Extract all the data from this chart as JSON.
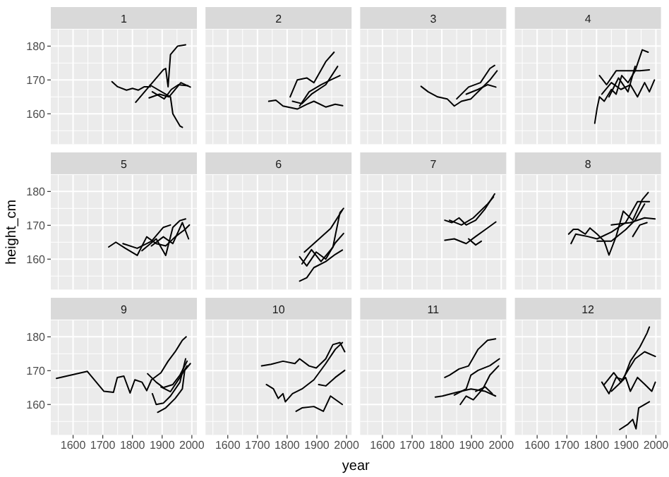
{
  "chart_data": [
    {
      "type": "line",
      "title": "1",
      "tick_labels": "y",
      "grid": true,
      "xlim": [
        1525,
        2017
      ],
      "ylim": [
        151,
        185
      ],
      "xticks": [
        1600,
        1700,
        1800,
        1900,
        2000
      ],
      "yticks": [
        160,
        170,
        180
      ],
      "series": [
        {
          "color": "#000000",
          "x": [
            1731,
            1750,
            1780,
            1800,
            1820,
            1840,
            1860
          ],
          "values": [
            169.5,
            168,
            167,
            167.5,
            167,
            168,
            168
          ]
        },
        {
          "color": "#000000",
          "x": [
            1811,
            1904,
            1912,
            1920,
            1928,
            1952,
            1979
          ],
          "values": [
            163.4,
            173,
            173.4,
            168,
            177.5,
            180,
            180.4
          ]
        },
        {
          "color": "#000000",
          "x": [
            1859,
            1928,
            1936,
            1960,
            1968
          ],
          "values": [
            168.5,
            165,
            160,
            156.4,
            156
          ]
        },
        {
          "color": "#000000",
          "x": [
            1856,
            1891,
            1923,
            1963,
            1995
          ],
          "values": [
            164.7,
            165.8,
            165,
            169.2,
            167.9
          ]
        },
        {
          "color": "#000000",
          "x": [
            1867,
            1907,
            1931,
            1955,
            1987
          ],
          "values": [
            166.5,
            164.4,
            167.2,
            168.6,
            168.3
          ]
        }
      ]
    },
    {
      "type": "line",
      "title": "2",
      "tick_labels": false,
      "grid": true,
      "xlim": [
        1525,
        2017
      ],
      "ylim": [
        151,
        185
      ],
      "xticks": [
        1600,
        1700,
        1800,
        1900,
        2000
      ],
      "yticks": [
        160,
        170,
        180
      ],
      "series": [
        {
          "color": "#000000",
          "x": [
            1738,
            1762,
            1786,
            1834,
            1866,
            1890,
            1930,
            1962,
            1987
          ],
          "values": [
            163.7,
            164,
            162.3,
            161.4,
            162.8,
            163.7,
            162,
            162.8,
            162.4
          ]
        },
        {
          "color": "#000000",
          "x": [
            1810,
            1834,
            1866,
            1890,
            1930,
            1958
          ],
          "values": [
            165,
            170,
            170.6,
            169.2,
            175.4,
            178.2
          ]
        },
        {
          "color": "#000000",
          "x": [
            1818,
            1850,
            1882,
            1930,
            1970
          ],
          "values": [
            163.7,
            163,
            165.8,
            168.6,
            174
          ]
        },
        {
          "color": "#000000",
          "x": [
            1842,
            1874,
            1914,
            1946,
            1978
          ],
          "values": [
            162.3,
            166.5,
            168.6,
            170,
            171.3
          ]
        }
      ]
    },
    {
      "type": "line",
      "title": "3",
      "tick_labels": false,
      "grid": true,
      "xlim": [
        1525,
        2017
      ],
      "ylim": [
        151,
        185
      ],
      "xticks": [
        1600,
        1700,
        1800,
        1900,
        2000
      ],
      "yticks": [
        160,
        170,
        180
      ],
      "series": [
        {
          "color": "#000000",
          "x": [
            1730,
            1754,
            1786,
            1818,
            1842,
            1866,
            1898,
            1930,
            1962,
            1986
          ],
          "values": [
            168.1,
            166.5,
            165,
            164.4,
            162.3,
            163.7,
            164.4,
            167.2,
            170,
            172.7
          ]
        },
        {
          "color": "#000000",
          "x": [
            1850,
            1890,
            1930,
            1962,
            1978
          ],
          "values": [
            164.4,
            167.9,
            169.2,
            173.4,
            174.3
          ]
        },
        {
          "color": "#000000",
          "x": [
            1882,
            1922,
            1954,
            1982
          ],
          "values": [
            165.8,
            167.2,
            168.6,
            167.9
          ]
        }
      ]
    },
    {
      "type": "line",
      "title": "4",
      "tick_labels": false,
      "grid": true,
      "xlim": [
        1525,
        2017
      ],
      "ylim": [
        151,
        185
      ],
      "xticks": [
        1600,
        1700,
        1800,
        1900,
        2000
      ],
      "yticks": [
        160,
        170,
        180
      ],
      "series": [
        {
          "color": "#000000",
          "x": [
            1794,
            1802,
            1810,
            1826,
            1850,
            1866,
            1885,
            1906,
            1930,
            1954,
            1974
          ],
          "values": [
            157.2,
            161.7,
            165,
            163.7,
            167.2,
            165.8,
            171.3,
            169.2,
            172.7,
            178.9,
            178.2
          ]
        },
        {
          "color": "#000000",
          "x": [
            1810,
            1834,
            1866,
            1914,
            1946,
            1978
          ],
          "values": [
            171.3,
            168.6,
            172.7,
            172.7,
            172.7,
            173
          ]
        },
        {
          "color": "#000000",
          "x": [
            1818,
            1850,
            1882,
            1914,
            1938,
            1962,
            1978,
            1995
          ],
          "values": [
            165.8,
            169.2,
            167.2,
            168.6,
            165,
            169.2,
            166.5,
            170
          ]
        },
        {
          "color": "#000000",
          "x": [
            1842,
            1874,
            1906,
            1930
          ],
          "values": [
            165,
            170.6,
            166.5,
            174
          ]
        }
      ]
    },
    {
      "type": "line",
      "title": "5",
      "ylabel": "height_cm",
      "tick_labels": "y",
      "grid": true,
      "xlim": [
        1525,
        2017
      ],
      "ylim": [
        151,
        185
      ],
      "xticks": [
        1600,
        1700,
        1800,
        1900,
        2000
      ],
      "yticks": [
        160,
        170,
        180
      ],
      "series": [
        {
          "color": "#000000",
          "x": [
            1720,
            1744,
            1776,
            1816,
            1848,
            1880,
            1912,
            1944,
            1976,
            1992
          ],
          "values": [
            163.6,
            165,
            163.2,
            161.1,
            166.6,
            164.6,
            163.9,
            166.6,
            168.7,
            170.1
          ]
        },
        {
          "color": "#000000",
          "x": [
            1768,
            1816,
            1864,
            1904,
            1928
          ],
          "values": [
            164.6,
            163.2,
            165.3,
            169.4,
            170.1
          ]
        },
        {
          "color": "#000000",
          "x": [
            1832,
            1880,
            1912,
            1936,
            1960,
            1979
          ],
          "values": [
            162.5,
            166,
            161.1,
            169.4,
            171.4,
            171.9
          ]
        },
        {
          "color": "#000000",
          "x": [
            1864,
            1904,
            1936,
            1968,
            1989
          ],
          "values": [
            163.9,
            166.6,
            164.6,
            170.8,
            166
          ]
        }
      ]
    },
    {
      "type": "line",
      "title": "6",
      "tick_labels": false,
      "grid": true,
      "xlim": [
        1525,
        2017
      ],
      "ylim": [
        151,
        185
      ],
      "xticks": [
        1600,
        1700,
        1800,
        1900,
        2000
      ],
      "yticks": [
        160,
        170,
        180
      ],
      "series": [
        {
          "color": "#000000",
          "x": [
            1842,
            1866,
            1890,
            1930,
            1962,
            1986
          ],
          "values": [
            153.5,
            154.5,
            157.5,
            159.3,
            161.4,
            162.7
          ]
        },
        {
          "color": "#000000",
          "x": [
            1842,
            1866,
            1898,
            1930,
            1962,
            1990
          ],
          "values": [
            160.7,
            158,
            162.1,
            160,
            164.8,
            167.6
          ]
        },
        {
          "color": "#000000",
          "x": [
            1850,
            1882,
            1914,
            1954,
            1978,
            1990
          ],
          "values": [
            158.6,
            162.8,
            159.3,
            163.5,
            173.8,
            175
          ]
        },
        {
          "color": "#000000",
          "x": [
            1858,
            1946,
            1986
          ],
          "values": [
            162.1,
            169,
            174.5
          ]
        }
      ]
    },
    {
      "type": "line",
      "title": "7",
      "tick_labels": false,
      "grid": true,
      "xlim": [
        1525,
        2017
      ],
      "ylim": [
        151,
        185
      ],
      "xticks": [
        1600,
        1700,
        1800,
        1900,
        2000
      ],
      "yticks": [
        160,
        170,
        180
      ],
      "series": [
        {
          "color": "#000000",
          "x": [
            1810,
            1834,
            1858,
            1882,
            1914,
            1946,
            1978
          ],
          "values": [
            171.5,
            170.8,
            172.2,
            170.1,
            171.5,
            174.9,
            179.3
          ]
        },
        {
          "color": "#000000",
          "x": [
            1826,
            1866,
            1906,
            1954,
            1974
          ],
          "values": [
            171.5,
            170.1,
            172.2,
            176.3,
            178.4
          ]
        },
        {
          "color": "#000000",
          "x": [
            1810,
            1842,
            1882,
            1914,
            1946,
            1982
          ],
          "values": [
            165.6,
            166,
            164.6,
            166.7,
            168.7,
            171
          ]
        },
        {
          "color": "#000000",
          "x": [
            1890,
            1914,
            1933
          ],
          "values": [
            166,
            164.2,
            165.3
          ]
        }
      ]
    },
    {
      "type": "line",
      "title": "8",
      "tick_labels": false,
      "grid": true,
      "xlim": [
        1525,
        2017
      ],
      "ylim": [
        151,
        185
      ],
      "xticks": [
        1600,
        1700,
        1800,
        1900,
        2000
      ],
      "yticks": [
        160,
        170,
        180
      ],
      "series": [
        {
          "color": "#000000",
          "x": [
            1706,
            1722,
            1738,
            1762,
            1778,
            1802,
            1826,
            1842,
            1866,
            1890,
            1922,
            1954,
            1974
          ],
          "values": [
            167.4,
            168.8,
            168.8,
            167.4,
            169.2,
            167.4,
            165.3,
            161.2,
            166.7,
            174.2,
            171.5,
            177.6,
            179.7
          ]
        },
        {
          "color": "#000000",
          "x": [
            1714,
            1730,
            1770,
            1802,
            1850,
            1898,
            1938,
            1978
          ],
          "values": [
            164.6,
            167.4,
            166.7,
            166,
            168,
            170.8,
            177,
            177
          ]
        },
        {
          "color": "#000000",
          "x": [
            1850,
            1914,
            1962,
            1997
          ],
          "values": [
            170.1,
            170.8,
            172.2,
            171.9
          ]
        },
        {
          "color": "#000000",
          "x": [
            1802,
            1850,
            1898,
            1930,
            1962
          ],
          "values": [
            165.3,
            165.3,
            168.7,
            171.5,
            176.3
          ]
        },
        {
          "color": "#000000",
          "x": [
            1922,
            1946,
            1970
          ],
          "values": [
            166.7,
            170.1,
            170.8
          ]
        }
      ]
    },
    {
      "type": "line",
      "title": "9",
      "grid": true,
      "xlim": [
        1525,
        2017
      ],
      "ylim": [
        151,
        185
      ],
      "xticks": [
        1600,
        1700,
        1800,
        1900,
        2000
      ],
      "yticks": [
        160,
        170,
        180
      ],
      "series": [
        {
          "color": "#000000",
          "x": [
            1544,
            1648,
            1704,
            1736,
            1749,
            1771,
            1792,
            1808,
            1832,
            1848,
            1864,
            1896,
            1920,
            1944,
            1968,
            1981
          ],
          "values": [
            167.7,
            169.8,
            163.9,
            163.6,
            168,
            168.4,
            163.4,
            167.3,
            166.6,
            164.1,
            167.3,
            169.4,
            172.8,
            175.6,
            179,
            180
          ]
        },
        {
          "color": "#000000",
          "x": [
            1851,
            1880,
            1904,
            1936,
            1960,
            1984
          ],
          "values": [
            169.1,
            166.6,
            165,
            165.9,
            168.7,
            172.8
          ]
        },
        {
          "color": "#000000",
          "x": [
            1867,
            1880,
            1904,
            1928,
            1960,
            1979
          ],
          "values": [
            163.2,
            160,
            160.4,
            162.5,
            166.6,
            173.5
          ]
        },
        {
          "color": "#000000",
          "x": [
            1885,
            1912,
            1944,
            1968,
            1976,
            1995
          ],
          "values": [
            157.7,
            159,
            161.8,
            164.6,
            170.1,
            172.1
          ]
        },
        {
          "color": "#000000",
          "x": [
            1896,
            1928,
            1960,
            1984
          ],
          "values": [
            165.2,
            163.8,
            168,
            171.4
          ]
        }
      ]
    },
    {
      "type": "line",
      "title": "10",
      "xlabel": "year",
      "tick_labels": "x",
      "grid": true,
      "xlim": [
        1525,
        2017
      ],
      "ylim": [
        151,
        185
      ],
      "xticks": [
        1600,
        1700,
        1800,
        1900,
        2000
      ],
      "yticks": [
        160,
        170,
        180
      ],
      "series": [
        {
          "color": "#000000",
          "x": [
            1714,
            1746,
            1786,
            1826,
            1842,
            1874,
            1898,
            1930,
            1954,
            1978,
            1994
          ],
          "values": [
            171.4,
            171.9,
            172.8,
            172.1,
            173.5,
            171.4,
            170.8,
            173.5,
            177.7,
            178.3,
            175.6
          ]
        },
        {
          "color": "#000000",
          "x": [
            1730,
            1754,
            1770,
            1786,
            1794,
            1818,
            1850,
            1890,
            1930,
            1962,
            1986
          ],
          "values": [
            165.9,
            164.6,
            161.8,
            163.2,
            160.8,
            163.2,
            164.6,
            167.3,
            172.1,
            176.3,
            178.3
          ]
        },
        {
          "color": "#000000",
          "x": [
            1830,
            1850,
            1890,
            1922,
            1946,
            1986
          ],
          "values": [
            158,
            159,
            159.4,
            158,
            162.5,
            160
          ]
        },
        {
          "color": "#000000",
          "x": [
            1906,
            1930,
            1962,
            1994
          ],
          "values": [
            165.9,
            165.5,
            168,
            170.1
          ]
        }
      ]
    },
    {
      "type": "line",
      "title": "11",
      "tick_labels": "x",
      "grid": true,
      "xlim": [
        1525,
        2017
      ],
      "ylim": [
        151,
        185
      ],
      "xticks": [
        1600,
        1700,
        1800,
        1900,
        2000
      ],
      "yticks": [
        160,
        170,
        180
      ],
      "series": [
        {
          "color": "#000000",
          "x": [
            1810,
            1826,
            1858,
            1890,
            1922,
            1954,
            1981
          ],
          "values": [
            168,
            168.7,
            170.5,
            171.4,
            176.3,
            179,
            179.4
          ]
        },
        {
          "color": "#000000",
          "x": [
            1778,
            1802,
            1850,
            1898,
            1946,
            1981
          ],
          "values": [
            162.2,
            162.5,
            163.6,
            164.6,
            163.9,
            162.5
          ]
        },
        {
          "color": "#000000",
          "x": [
            1842,
            1882,
            1898,
            1922,
            1962,
            1994
          ],
          "values": [
            162.8,
            164.6,
            168.7,
            170.1,
            171.5,
            173.5
          ]
        },
        {
          "color": "#000000",
          "x": [
            1862,
            1882,
            1906,
            1938,
            1962,
            1991
          ],
          "values": [
            160,
            162.5,
            161.4,
            164.6,
            168.7,
            171.4
          ]
        },
        {
          "color": "#000000",
          "x": [
            1914,
            1946,
            1970
          ],
          "values": [
            163.9,
            165.2,
            163.2
          ]
        }
      ]
    },
    {
      "type": "line",
      "title": "12",
      "tick_labels": "x",
      "grid": true,
      "xlim": [
        1525,
        2017
      ],
      "ylim": [
        151,
        185
      ],
      "xticks": [
        1600,
        1700,
        1800,
        1900,
        2000
      ],
      "yticks": [
        160,
        170,
        180
      ],
      "series": [
        {
          "color": "#000000",
          "x": [
            1818,
            1842,
            1866,
            1890,
            1914,
            1946,
            1970,
            1978
          ],
          "values": [
            166.6,
            163.2,
            168,
            167.3,
            172.8,
            177,
            181.1,
            182.9
          ]
        },
        {
          "color": "#000000",
          "x": [
            1826,
            1858,
            1882,
            1906,
            1930,
            1962,
            1998
          ],
          "values": [
            165.9,
            169.4,
            166.6,
            170.1,
            173.5,
            175.6,
            174.2
          ]
        },
        {
          "color": "#000000",
          "x": [
            1850,
            1874,
            1898,
            1914,
            1938,
            1962,
            1986,
            1998
          ],
          "values": [
            163.9,
            165.9,
            168,
            163.9,
            168,
            166,
            163.9,
            166.6
          ]
        },
        {
          "color": "#000000",
          "x": [
            1878,
            1906,
            1922,
            1933,
            1942,
            1978
          ],
          "values": [
            152.6,
            154.2,
            155.6,
            152.8,
            159,
            160.8
          ]
        }
      ]
    }
  ]
}
